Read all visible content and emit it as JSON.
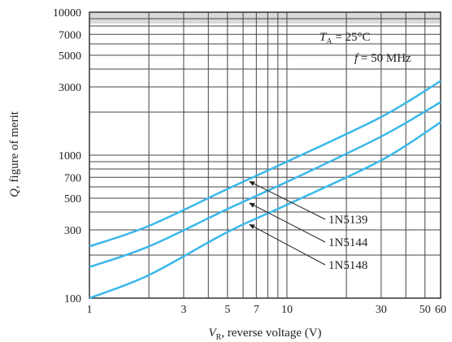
{
  "chart_data": {
    "type": "line",
    "x_scale": "log",
    "y_scale": "log",
    "xlim": [
      1,
      60
    ],
    "ylim": [
      100,
      10000
    ],
    "grid": true,
    "xlabel_var": "V",
    "xlabel_sub": "R",
    "xlabel_rest": ", reverse voltage (V)",
    "ylabel_var": "Q",
    "ylabel_rest": ", figure of merit",
    "x_ticks": [
      1,
      3,
      5,
      7,
      10,
      30,
      50,
      60
    ],
    "x_tick_labels": [
      "1",
      "3",
      "5",
      "7",
      "10",
      "30",
      "50",
      "60"
    ],
    "y_ticks": [
      100,
      300,
      500,
      700,
      1000,
      3000,
      5000,
      7000,
      10000
    ],
    "y_tick_labels": [
      "100",
      "300",
      "500",
      "700",
      "1000",
      "3000",
      "5000",
      "7000",
      "10000"
    ],
    "annotations": [
      {
        "var": "T",
        "sub": "A",
        "rest": " = 25°C"
      },
      {
        "var": "f",
        "sub": "",
        "rest": " = 50 MHz"
      }
    ],
    "line_color": "#3ab8ea",
    "series": [
      {
        "name": "1N5139",
        "x": [
          1,
          2,
          5,
          10,
          30,
          60
        ],
        "y": [
          230,
          320,
          580,
          900,
          1850,
          3300
        ],
        "label_point": [
          6,
          680
        ]
      },
      {
        "name": "1N5144",
        "x": [
          1,
          2,
          5,
          10,
          30,
          60
        ],
        "y": [
          165,
          230,
          420,
          650,
          1350,
          2350
        ],
        "label_point": [
          6,
          480
        ]
      },
      {
        "name": "1N5148",
        "x": [
          1,
          2,
          5,
          10,
          30,
          60
        ],
        "y": [
          100,
          145,
          290,
          450,
          920,
          1700
        ],
        "label_point": [
          6,
          340
        ]
      }
    ]
  }
}
